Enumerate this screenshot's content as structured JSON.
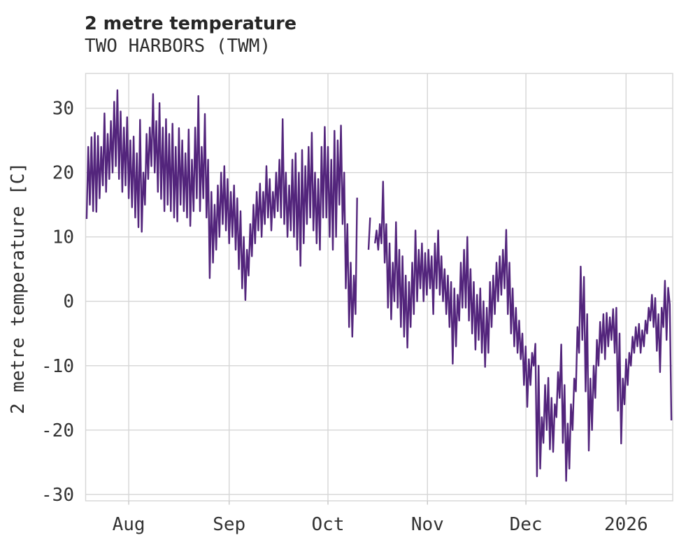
{
  "chart_data": {
    "type": "line",
    "title": "2 metre temperature",
    "subtitle": "TWO HARBORS (TWM)",
    "ylabel": "2 metre temperature [C]",
    "xlabel": "",
    "ylim": [
      -31,
      35.4
    ],
    "yticks": [
      30,
      20,
      10,
      0,
      -10,
      -20,
      -30
    ],
    "xticks": [
      {
        "label": "Aug",
        "day": 13.3
      },
      {
        "label": "Sep",
        "day": 44.3
      },
      {
        "label": "Oct",
        "day": 74.8
      },
      {
        "label": "Nov",
        "day": 105.5
      },
      {
        "label": "Dec",
        "day": 135.9
      },
      {
        "label": "2026",
        "day": 166.8
      }
    ],
    "x_range_days": [
      0,
      181.2
    ],
    "grid": true,
    "legend": "none",
    "series_encoding": "days = one entry per day from plot left edge; each entry is [early-day temp C, late-day temp C]; null = missing data gap",
    "days": [
      [
        12.8,
        24
      ],
      [
        15,
        25.5
      ],
      [
        14,
        26.2
      ],
      [
        13.9,
        25.7
      ],
      [
        16,
        24
      ],
      [
        18,
        29.2
      ],
      [
        17,
        26
      ],
      [
        19,
        28
      ],
      [
        20,
        31
      ],
      [
        21,
        32.8
      ],
      [
        19,
        29.5
      ],
      [
        17,
        27
      ],
      [
        18,
        28.6
      ],
      [
        16,
        25
      ],
      [
        14.6,
        25.6
      ],
      [
        13,
        23
      ],
      [
        11.5,
        28.2
      ],
      [
        10.8,
        20
      ],
      [
        15,
        26
      ],
      [
        19,
        27
      ],
      [
        21,
        32.2
      ],
      [
        20,
        28
      ],
      [
        17,
        30.8
      ],
      [
        15.9,
        27
      ],
      [
        14,
        28.3
      ],
      [
        15,
        26
      ],
      [
        14,
        27.6
      ],
      [
        13,
        24
      ],
      [
        12.4,
        26.9
      ],
      [
        15,
        25
      ],
      [
        14,
        23
      ],
      [
        13,
        26.7
      ],
      [
        11.7,
        22
      ],
      [
        14,
        27
      ],
      [
        16,
        31.9
      ],
      [
        14,
        24
      ],
      [
        16,
        29.1
      ],
      [
        13,
        22
      ],
      [
        3.6,
        17
      ],
      [
        6,
        15
      ],
      [
        8,
        18
      ],
      [
        10,
        20
      ],
      [
        12,
        21
      ],
      [
        11,
        19
      ],
      [
        9,
        17
      ],
      [
        10,
        18
      ],
      [
        8,
        16
      ],
      [
        5,
        14
      ],
      [
        2,
        10
      ],
      [
        0.2,
        8
      ],
      [
        4,
        12
      ],
      [
        7,
        15
      ],
      [
        9,
        17
      ],
      [
        11,
        18.3
      ],
      [
        10,
        17
      ],
      [
        12,
        21
      ],
      [
        13,
        19
      ],
      [
        11,
        17
      ],
      [
        13,
        20
      ],
      [
        14,
        22
      ],
      [
        13,
        28.3
      ],
      [
        12,
        20
      ],
      [
        10,
        18
      ],
      [
        11,
        22
      ],
      [
        10,
        23
      ],
      [
        8,
        20
      ],
      [
        5.5,
        23.5
      ],
      [
        9,
        21
      ],
      [
        12,
        24
      ],
      [
        13,
        26.2
      ],
      [
        11,
        20
      ],
      [
        9,
        19
      ],
      [
        8,
        24
      ],
      [
        13,
        27.1
      ],
      [
        13,
        24
      ],
      [
        10,
        22
      ],
      [
        8,
        26.5
      ],
      [
        10,
        25
      ],
      [
        15,
        27.3
      ],
      [
        12,
        20
      ],
      [
        2,
        12
      ],
      [
        -4,
        6
      ],
      [
        -5.5,
        4
      ],
      [
        -2,
        16.1
      ],
      null,
      null,
      null,
      [
        8,
        13
      ],
      null,
      [
        9,
        11
      ],
      [
        8,
        12
      ],
      [
        9,
        18.6
      ],
      [
        6,
        12
      ],
      [
        -1,
        9
      ],
      [
        -2.8,
        6
      ],
      [
        0,
        12.3
      ],
      [
        -1,
        8
      ],
      [
        -4,
        7
      ],
      [
        -5.5,
        4
      ],
      [
        -7.2,
        3
      ],
      [
        -4,
        6
      ],
      [
        -2,
        11
      ],
      [
        0,
        8
      ],
      [
        2,
        9
      ],
      [
        0,
        7.5
      ],
      [
        1,
        8
      ],
      [
        2,
        7
      ],
      [
        -2,
        9
      ],
      [
        2,
        11
      ],
      [
        1,
        7
      ],
      [
        0,
        5
      ],
      [
        -2,
        4
      ],
      [
        -4,
        3
      ],
      [
        -9.7,
        2
      ],
      [
        -7,
        1
      ],
      [
        -3,
        6
      ],
      [
        -1,
        8
      ],
      [
        -1,
        10
      ],
      [
        -3,
        5
      ],
      [
        -5,
        3
      ],
      [
        -7.5,
        1
      ],
      [
        -6,
        2
      ],
      [
        -8,
        0
      ],
      [
        -10.2,
        -1
      ],
      [
        -8,
        3
      ],
      [
        -4,
        4
      ],
      [
        -2,
        6
      ],
      [
        0,
        7
      ],
      [
        1,
        8
      ],
      [
        2,
        11.1
      ],
      [
        -2,
        6
      ],
      [
        -5,
        2
      ],
      [
        -7,
        -1
      ],
      [
        -8,
        -3
      ],
      [
        -9,
        -5
      ],
      [
        -13,
        -7
      ],
      [
        -16.4,
        -9
      ],
      [
        -13,
        -8
      ],
      [
        -10,
        -6.6
      ],
      [
        -27.2,
        -10
      ],
      [
        -26,
        -18
      ],
      [
        -22,
        -13
      ],
      [
        -20,
        -11.9
      ],
      [
        -23,
        -15
      ],
      [
        -23.4,
        -16
      ],
      [
        -18,
        -11
      ],
      [
        -15,
        -6.7
      ],
      [
        -22,
        -13
      ],
      [
        -27.9,
        -19
      ],
      [
        -26,
        -16
      ],
      [
        -20,
        -12
      ],
      [
        -14,
        -4
      ],
      [
        -8,
        5.4
      ],
      [
        -6,
        3.8
      ],
      [
        -14,
        -2
      ],
      [
        -23.2,
        -12
      ],
      [
        -20,
        -10
      ],
      [
        -15,
        -6
      ],
      [
        -10,
        -3.2
      ],
      [
        -8,
        -2
      ],
      [
        -9,
        -1.8
      ],
      [
        -7,
        -2.5
      ],
      [
        -6,
        -1.2
      ],
      [
        -8,
        -1
      ],
      [
        -17,
        -5
      ],
      [
        -22.1,
        -12
      ],
      [
        -16,
        -9
      ],
      [
        -13,
        -8
      ],
      [
        -10,
        -5.5
      ],
      [
        -8,
        -4
      ],
      [
        -7,
        -3.5
      ],
      [
        -8,
        -4.5
      ],
      [
        -7,
        -3
      ],
      [
        -5,
        -1
      ],
      [
        -3,
        1
      ],
      [
        -4,
        0.5
      ],
      [
        -7.7,
        -2
      ],
      [
        -11,
        -1
      ],
      [
        -4,
        3.2
      ],
      [
        -6,
        2.1
      ],
      [
        -0.5,
        -18.5
      ]
    ]
  },
  "colors": {
    "line": "#53257c",
    "grid": "#d6d6d6",
    "tick": "#c8c8c8",
    "title_text": "#262626",
    "tick_text": "#333333",
    "background": "#ffffff"
  }
}
